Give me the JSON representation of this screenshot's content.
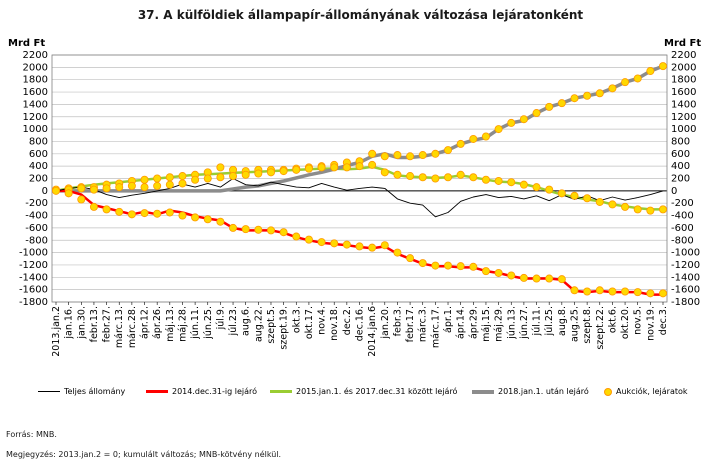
{
  "title": "37. A külföldiek állampapír-állományának változása lejáratonként",
  "unit_left": "Mrd Ft",
  "unit_right": "Mrd Ft",
  "source": "Forrás: MNB.",
  "note": "Megjegyzés: 2013.jan.2 = 0; kumulált változás; MNB-kötvény nélkül.",
  "colors": {
    "total": "#000000",
    "to_2014": "#ff0000",
    "y2015_2017": "#9acd32",
    "after_2018": "#8c8c8c",
    "auction_fill": "#ffd800",
    "auction_edge": "#ff9900",
    "grid": "#c0c0c0"
  },
  "chart_data": {
    "type": "line",
    "ylim": [
      -1800,
      2200
    ],
    "yticks": [
      2200,
      2000,
      1800,
      1600,
      1400,
      1200,
      1000,
      800,
      600,
      400,
      200,
      0,
      -200,
      -400,
      -600,
      -800,
      -1000,
      -1200,
      -1400,
      -1600,
      -1800
    ],
    "x_tick_labels": [
      "2013.jan.2",
      "jan.16.",
      "jan.30.",
      "febr.13.",
      "febr.27.",
      "márc.13.",
      "márc.28.",
      "ápr.12.",
      "ápr.26.",
      "máj.13.",
      "máj.28.",
      "jún.11.",
      "jún.25.",
      "júl.9.",
      "júl.23.",
      "aug.6.",
      "aug.22.",
      "szept.5.",
      "szept.19.",
      "okt.3.",
      "okt.17.",
      "nov.4.",
      "nov.18.",
      "dec.2.",
      "dec.16.",
      "2014.jan.6",
      "jan.20.",
      "febr.3.",
      "febr.17.",
      "márc.3.",
      "márc.17.",
      "ápr.1.",
      "ápr.14.",
      "ápr.29.",
      "máj.15.",
      "máj.29.",
      "jún.13.",
      "jún.27.",
      "júl.11.",
      "júl.25.",
      "aug.8.",
      "aug.25.",
      "szept.8.",
      "szept.22.",
      "okt.6.",
      "okt.20.",
      "nov.5.",
      "nov.19.",
      "dec.3."
    ],
    "x_count": 49,
    "series": [
      {
        "name": "Teljes állomány",
        "style": "thin-line",
        "values": [
          0,
          40,
          60,
          20,
          -60,
          -110,
          -70,
          -40,
          0,
          40,
          110,
          60,
          120,
          60,
          200,
          100,
          80,
          140,
          100,
          60,
          50,
          120,
          60,
          10,
          40,
          60,
          40,
          -130,
          -200,
          -230,
          -420,
          -350,
          -170,
          -100,
          -60,
          -110,
          -90,
          -130,
          -80,
          -160,
          -60,
          -140,
          -80,
          -160,
          -100,
          -150,
          -110,
          -60,
          0
        ]
      },
      {
        "name": "2014.dec.31-ig lejáró",
        "style": "red-line",
        "values": [
          0,
          0,
          -60,
          -230,
          -280,
          -330,
          -380,
          -340,
          -380,
          -320,
          -350,
          -410,
          -450,
          -480,
          -600,
          -640,
          -640,
          -640,
          -680,
          -750,
          -800,
          -840,
          -860,
          -880,
          -910,
          -930,
          -900,
          -1020,
          -1100,
          -1180,
          -1220,
          -1220,
          -1240,
          -1240,
          -1300,
          -1330,
          -1380,
          -1420,
          -1420,
          -1420,
          -1440,
          -1620,
          -1640,
          -1620,
          -1640,
          -1640,
          -1640,
          -1680,
          -1680
        ]
      },
      {
        "name": "2015.jan.1. és 2017.dec.31 között lejáró",
        "style": "green-line",
        "values": [
          0,
          40,
          70,
          100,
          120,
          140,
          160,
          180,
          200,
          220,
          240,
          260,
          270,
          280,
          290,
          300,
          310,
          320,
          330,
          340,
          350,
          360,
          360,
          350,
          360,
          390,
          340,
          250,
          230,
          220,
          210,
          220,
          250,
          220,
          180,
          150,
          140,
          110,
          60,
          0,
          -60,
          -100,
          -140,
          -170,
          -220,
          -250,
          -280,
          -300,
          -300
        ]
      },
      {
        "name": "2018.jan.1. után lejáró",
        "style": "gray-line",
        "values": [
          0,
          0,
          0,
          0,
          0,
          0,
          0,
          0,
          0,
          0,
          0,
          0,
          0,
          0,
          30,
          60,
          80,
          120,
          160,
          210,
          260,
          300,
          350,
          410,
          460,
          560,
          600,
          540,
          540,
          560,
          600,
          660,
          760,
          820,
          860,
          1000,
          1100,
          1140,
          1260,
          1360,
          1420,
          1500,
          1540,
          1580,
          1660,
          1760,
          1820,
          1940,
          2020
        ]
      },
      {
        "name": "Aukciók, lejáratok",
        "style": "markers",
        "markers": [
          {
            "x": 0,
            "y": 20
          },
          {
            "x": 1,
            "y": 40
          },
          {
            "x": 2,
            "y": 60
          },
          {
            "x": 3,
            "y": 60
          },
          {
            "x": 4,
            "y": 100
          },
          {
            "x": 5,
            "y": 120
          },
          {
            "x": 6,
            "y": 160
          },
          {
            "x": 7,
            "y": 180
          },
          {
            "x": 8,
            "y": 200
          },
          {
            "x": 9,
            "y": 220
          },
          {
            "x": 10,
            "y": 240
          },
          {
            "x": 11,
            "y": 260
          },
          {
            "x": 12,
            "y": 300
          },
          {
            "x": 13,
            "y": 380
          },
          {
            "x": 14,
            "y": 340
          },
          {
            "x": 15,
            "y": 320
          },
          {
            "x": 16,
            "y": 340
          },
          {
            "x": 17,
            "y": 340
          },
          {
            "x": 18,
            "y": 340
          },
          {
            "x": 19,
            "y": 360
          },
          {
            "x": 20,
            "y": 380
          },
          {
            "x": 21,
            "y": 400
          },
          {
            "x": 22,
            "y": 420
          },
          {
            "x": 23,
            "y": 460
          },
          {
            "x": 24,
            "y": 480
          },
          {
            "x": 25,
            "y": 600
          },
          {
            "x": 26,
            "y": 560
          },
          {
            "x": 27,
            "y": 580
          },
          {
            "x": 28,
            "y": 560
          },
          {
            "x": 29,
            "y": 580
          },
          {
            "x": 30,
            "y": 600
          },
          {
            "x": 31,
            "y": 660
          },
          {
            "x": 32,
            "y": 760
          },
          {
            "x": 33,
            "y": 840
          },
          {
            "x": 34,
            "y": 880
          },
          {
            "x": 35,
            "y": 1000
          },
          {
            "x": 36,
            "y": 1100
          },
          {
            "x": 37,
            "y": 1160
          },
          {
            "x": 38,
            "y": 1260
          },
          {
            "x": 39,
            "y": 1360
          },
          {
            "x": 40,
            "y": 1420
          },
          {
            "x": 41,
            "y": 1500
          },
          {
            "x": 42,
            "y": 1540
          },
          {
            "x": 43,
            "y": 1580
          },
          {
            "x": 44,
            "y": 1660
          },
          {
            "x": 45,
            "y": 1760
          },
          {
            "x": 46,
            "y": 1820
          },
          {
            "x": 47,
            "y": 1940
          },
          {
            "x": 48,
            "y": 2020
          },
          {
            "x": 0,
            "y": 0
          },
          {
            "x": 1,
            "y": 20
          },
          {
            "x": 2,
            "y": 40
          },
          {
            "x": 3,
            "y": 20
          },
          {
            "x": 4,
            "y": 40
          },
          {
            "x": 5,
            "y": 60
          },
          {
            "x": 6,
            "y": 80
          },
          {
            "x": 7,
            "y": 60
          },
          {
            "x": 8,
            "y": 80
          },
          {
            "x": 9,
            "y": 100
          },
          {
            "x": 10,
            "y": 120
          },
          {
            "x": 11,
            "y": 180
          },
          {
            "x": 12,
            "y": 200
          },
          {
            "x": 13,
            "y": 220
          },
          {
            "x": 14,
            "y": 240
          },
          {
            "x": 15,
            "y": 260
          },
          {
            "x": 16,
            "y": 280
          },
          {
            "x": 17,
            "y": 300
          },
          {
            "x": 18,
            "y": 320
          },
          {
            "x": 19,
            "y": 340
          },
          {
            "x": 20,
            "y": 360
          },
          {
            "x": 21,
            "y": 380
          },
          {
            "x": 22,
            "y": 380
          },
          {
            "x": 23,
            "y": 380
          },
          {
            "x": 24,
            "y": 400
          },
          {
            "x": 25,
            "y": 420
          },
          {
            "x": 26,
            "y": 300
          },
          {
            "x": 27,
            "y": 260
          },
          {
            "x": 28,
            "y": 240
          },
          {
            "x": 29,
            "y": 220
          },
          {
            "x": 30,
            "y": 200
          },
          {
            "x": 31,
            "y": 220
          },
          {
            "x": 32,
            "y": 260
          },
          {
            "x": 33,
            "y": 220
          },
          {
            "x": 34,
            "y": 180
          },
          {
            "x": 35,
            "y": 160
          },
          {
            "x": 36,
            "y": 140
          },
          {
            "x": 37,
            "y": 100
          },
          {
            "x": 38,
            "y": 60
          },
          {
            "x": 39,
            "y": 20
          },
          {
            "x": 40,
            "y": -40
          },
          {
            "x": 41,
            "y": -80
          },
          {
            "x": 42,
            "y": -120
          },
          {
            "x": 43,
            "y": -180
          },
          {
            "x": 44,
            "y": -220
          },
          {
            "x": 45,
            "y": -260
          },
          {
            "x": 46,
            "y": -300
          },
          {
            "x": 47,
            "y": -320
          },
          {
            "x": 48,
            "y": -300
          },
          {
            "x": 1,
            "y": -40
          },
          {
            "x": 2,
            "y": -140
          },
          {
            "x": 3,
            "y": -260
          },
          {
            "x": 4,
            "y": -300
          },
          {
            "x": 5,
            "y": -340
          },
          {
            "x": 6,
            "y": -380
          },
          {
            "x": 7,
            "y": -360
          },
          {
            "x": 8,
            "y": -370
          },
          {
            "x": 9,
            "y": -350
          },
          {
            "x": 10,
            "y": -400
          },
          {
            "x": 11,
            "y": -430
          },
          {
            "x": 12,
            "y": -460
          },
          {
            "x": 13,
            "y": -500
          },
          {
            "x": 14,
            "y": -600
          },
          {
            "x": 15,
            "y": -620
          },
          {
            "x": 16,
            "y": -630
          },
          {
            "x": 17,
            "y": -640
          },
          {
            "x": 18,
            "y": -670
          },
          {
            "x": 19,
            "y": -740
          },
          {
            "x": 20,
            "y": -790
          },
          {
            "x": 21,
            "y": -830
          },
          {
            "x": 22,
            "y": -850
          },
          {
            "x": 23,
            "y": -870
          },
          {
            "x": 24,
            "y": -900
          },
          {
            "x": 25,
            "y": -920
          },
          {
            "x": 26,
            "y": -880
          },
          {
            "x": 27,
            "y": -1000
          },
          {
            "x": 28,
            "y": -1090
          },
          {
            "x": 29,
            "y": -1170
          },
          {
            "x": 30,
            "y": -1210
          },
          {
            "x": 31,
            "y": -1210
          },
          {
            "x": 32,
            "y": -1220
          },
          {
            "x": 33,
            "y": -1230
          },
          {
            "x": 34,
            "y": -1300
          },
          {
            "x": 35,
            "y": -1330
          },
          {
            "x": 36,
            "y": -1370
          },
          {
            "x": 37,
            "y": -1410
          },
          {
            "x": 38,
            "y": -1420
          },
          {
            "x": 39,
            "y": -1420
          },
          {
            "x": 40,
            "y": -1430
          },
          {
            "x": 41,
            "y": -1610
          },
          {
            "x": 42,
            "y": -1630
          },
          {
            "x": 43,
            "y": -1610
          },
          {
            "x": 44,
            "y": -1630
          },
          {
            "x": 45,
            "y": -1630
          },
          {
            "x": 46,
            "y": -1640
          },
          {
            "x": 47,
            "y": -1660
          },
          {
            "x": 48,
            "y": -1660
          }
        ]
      }
    ],
    "grid": true,
    "legend_position": "bottom"
  }
}
